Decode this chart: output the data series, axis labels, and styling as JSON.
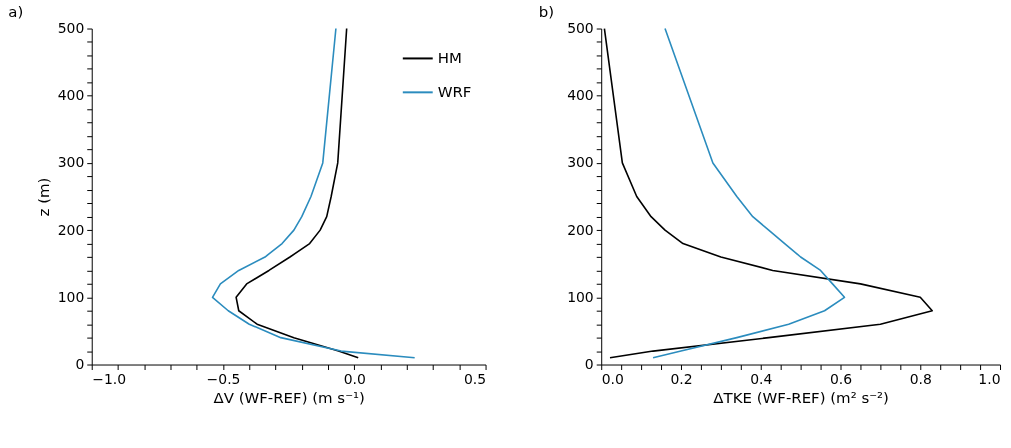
{
  "chart_data": [
    {
      "type": "line",
      "title": "a)",
      "xlabel": "ΔV (WF-REF) (m s⁻¹)",
      "ylabel": "z (m)",
      "legend": "top right",
      "series": [
        {
          "name": "HM",
          "color": "#000000",
          "x": [
            0.015,
            -0.06,
            -0.23,
            -0.37,
            -0.44,
            -0.45,
            -0.41,
            -0.325,
            -0.245,
            -0.17,
            -0.13,
            -0.105,
            -0.088,
            -0.063,
            -0.029
          ],
          "values": [
            10,
            20,
            40,
            60,
            80,
            100,
            120,
            140,
            160,
            180,
            200,
            220,
            250,
            300,
            500
          ]
        },
        {
          "name": "WRF",
          "color": "#2b8cbe",
          "x": [
            0.23,
            -0.05,
            -0.28,
            -0.4,
            -0.48,
            -0.54,
            -0.51,
            -0.44,
            -0.34,
            -0.275,
            -0.23,
            -0.2,
            -0.165,
            -0.12,
            -0.07
          ],
          "values": [
            10,
            20,
            40,
            60,
            80,
            100,
            120,
            140,
            160,
            180,
            200,
            220,
            250,
            300,
            500
          ]
        }
      ],
      "xlim": [
        -1.0,
        0.5
      ],
      "xticks": [
        {
          "value": -1.0,
          "label": "−1.0"
        },
        {
          "value": -0.9,
          "label": null
        },
        {
          "value": -0.8,
          "label": null
        },
        {
          "value": -0.7,
          "label": null
        },
        {
          "value": -0.6,
          "label": null
        },
        {
          "value": -0.5,
          "label": "−0.5"
        },
        {
          "value": -0.4,
          "label": null
        },
        {
          "value": -0.3,
          "label": null
        },
        {
          "value": -0.2,
          "label": null
        },
        {
          "value": -0.1,
          "label": null
        },
        {
          "value": 0.0,
          "label": "0.0"
        },
        {
          "value": 0.1,
          "label": null
        },
        {
          "value": 0.2,
          "label": null
        },
        {
          "value": 0.3,
          "label": null
        },
        {
          "value": 0.4,
          "label": null
        },
        0.5
      ],
      "ylim": [
        0,
        500
      ],
      "yticks": [
        0,
        {
          "value": 20,
          "label": null
        },
        {
          "value": 40,
          "label": null
        },
        {
          "value": 60,
          "label": null
        },
        {
          "value": 80,
          "label": null
        },
        100,
        {
          "value": 120,
          "label": null
        },
        {
          "value": 140,
          "label": null
        },
        {
          "value": 160,
          "label": null
        },
        {
          "value": 180,
          "label": null
        },
        200,
        {
          "value": 220,
          "label": null
        },
        {
          "value": 240,
          "label": null
        },
        {
          "value": 260,
          "label": null
        },
        {
          "value": 280,
          "label": null
        },
        300,
        {
          "value": 320,
          "label": null
        },
        {
          "value": 340,
          "label": null
        },
        {
          "value": 360,
          "label": null
        },
        {
          "value": 380,
          "label": null
        },
        400,
        {
          "value": 420,
          "label": null
        },
        {
          "value": 440,
          "label": null
        },
        {
          "value": 460,
          "label": null
        },
        {
          "value": 480,
          "label": null
        },
        500
      ]
    },
    {
      "type": "line",
      "title": "b)",
      "xlabel": "ΔTKE (WF-REF) (m² s⁻²)",
      "series": [
        {
          "color": "#000000",
          "x": [
            0.022,
            0.13,
            0.42,
            0.7,
            0.83,
            0.8,
            0.65,
            0.43,
            0.3,
            0.205,
            0.16,
            0.125,
            0.089,
            0.053,
            0.008
          ],
          "values": [
            10,
            20,
            40,
            60,
            80,
            100,
            120,
            140,
            160,
            180,
            200,
            220,
            250,
            300,
            500
          ]
        },
        {
          "color": "#2b8cbe",
          "x": [
            0.13,
            0.2,
            0.34,
            0.47,
            0.56,
            0.61,
            0.58,
            0.55,
            0.5,
            0.46,
            0.42,
            0.38,
            0.34,
            0.28,
            0.16
          ],
          "values": [
            10,
            20,
            40,
            60,
            80,
            100,
            120,
            140,
            160,
            180,
            200,
            220,
            250,
            300,
            500
          ]
        }
      ],
      "xlim": [
        0.0,
        1.0
      ],
      "xticks": [
        {
          "value": 0.0,
          "label": "0.0"
        },
        {
          "value": 0.05,
          "label": null
        },
        {
          "value": 0.1,
          "label": null
        },
        {
          "value": 0.15,
          "label": null
        },
        0.2,
        {
          "value": 0.25,
          "label": null
        },
        {
          "value": 0.3,
          "label": null
        },
        {
          "value": 0.35,
          "label": null
        },
        0.4,
        {
          "value": 0.45,
          "label": null
        },
        {
          "value": 0.5,
          "label": null
        },
        {
          "value": 0.55,
          "label": null
        },
        0.6,
        {
          "value": 0.65,
          "label": null
        },
        {
          "value": 0.7,
          "label": null
        },
        {
          "value": 0.75,
          "label": null
        },
        0.8,
        {
          "value": 0.85,
          "label": null
        },
        {
          "value": 0.9,
          "label": null
        },
        {
          "value": 0.95,
          "label": null
        },
        {
          "value": 1.0,
          "label": "1.0"
        }
      ],
      "ylim": [
        0,
        500
      ],
      "yticks": [
        0,
        {
          "value": 20,
          "label": null
        },
        {
          "value": 40,
          "label": null
        },
        {
          "value": 60,
          "label": null
        },
        {
          "value": 80,
          "label": null
        },
        100,
        {
          "value": 120,
          "label": null
        },
        {
          "value": 140,
          "label": null
        },
        {
          "value": 160,
          "label": null
        },
        {
          "value": 180,
          "label": null
        },
        200,
        {
          "value": 220,
          "label": null
        },
        {
          "value": 240,
          "label": null
        },
        {
          "value": 260,
          "label": null
        },
        {
          "value": 280,
          "label": null
        },
        300,
        {
          "value": 320,
          "label": null
        },
        {
          "value": 340,
          "label": null
        },
        {
          "value": 360,
          "label": null
        },
        {
          "value": 380,
          "label": null
        },
        400,
        {
          "value": 420,
          "label": null
        },
        {
          "value": 440,
          "label": null
        },
        {
          "value": 460,
          "label": null
        },
        {
          "value": 480,
          "label": null
        },
        500
      ]
    }
  ]
}
